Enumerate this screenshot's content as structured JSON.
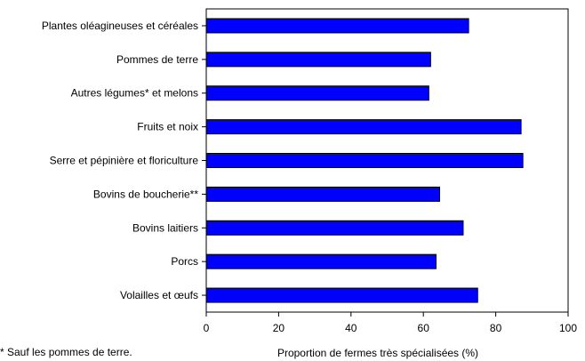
{
  "chart_data": {
    "type": "bar",
    "orientation": "horizontal",
    "categories": [
      "Plantes oléagineuses et céréales",
      "Pommes de terre",
      "Autres légumes* et melons",
      "Fruits et noix",
      "Serre et pépinière et floriculture",
      "Bovins de boucherie**",
      "Bovins laitiers",
      "Porcs",
      "Volailles et œufs"
    ],
    "values": [
      72.5,
      62,
      61.5,
      87,
      87.5,
      64.5,
      71,
      63.5,
      75
    ],
    "xlabel": "Proportion de fermes très spécialisées (%)",
    "ylabel": "",
    "xlim": [
      0,
      100
    ],
    "xticks": [
      "0",
      "20",
      "40",
      "60",
      "80",
      "100"
    ],
    "bar_color": "#0000ff",
    "grid": false
  },
  "footnote": "* Sauf les pommes de terre."
}
